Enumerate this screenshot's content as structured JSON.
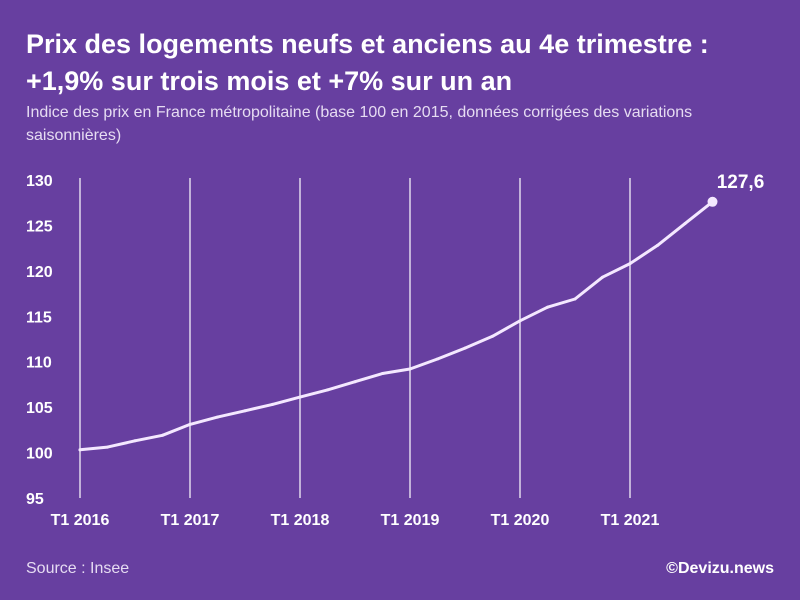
{
  "header": {
    "title_line1": "Prix des logements neufs et anciens au 4e trimestre :",
    "title_line2": "+1,9% sur trois mois et +7% sur un an",
    "subtitle": "Indice des prix en France métropolitaine (base 100 en 2015, données corrigées des variations saisonnières)"
  },
  "footer": {
    "source": "Source : Insee",
    "credit": "©Devizu.news"
  },
  "colors": {
    "background": "#673fa0",
    "line": "#f4e8ff",
    "grid": "#ffffff"
  },
  "chart_data": {
    "type": "line",
    "title": "Prix des logements neufs et anciens au 4e trimestre : +1,9% sur trois mois et +7% sur un an",
    "xlabel": "",
    "ylabel": "",
    "ylim": [
      95,
      130
    ],
    "yticks": [
      95,
      100,
      105,
      110,
      115,
      120,
      125,
      130
    ],
    "xtick_labels": [
      "T1 2016",
      "T1 2017",
      "T1 2018",
      "T1 2019",
      "T1 2020",
      "T1 2021"
    ],
    "grid": "vertical",
    "x": [
      "T1 2016",
      "T2 2016",
      "T3 2016",
      "T4 2016",
      "T1 2017",
      "T2 2017",
      "T3 2017",
      "T4 2017",
      "T1 2018",
      "T2 2018",
      "T3 2018",
      "T4 2018",
      "T1 2019",
      "T2 2019",
      "T3 2019",
      "T4 2019",
      "T1 2020",
      "T2 2020",
      "T3 2020",
      "T4 2020",
      "T1 2021",
      "T2 2021",
      "T3 2021",
      "T4 2021"
    ],
    "series": [
      {
        "values": [
          100.3,
          100.6,
          101.3,
          101.9,
          103.1,
          103.9,
          104.6,
          105.3,
          106.1,
          106.9,
          107.8,
          108.7,
          109.2,
          110.3,
          111.5,
          112.8,
          114.5,
          116.0,
          116.9,
          119.3,
          120.8,
          122.8,
          125.2,
          127.6
        ]
      }
    ],
    "last_value_label": "127,6"
  }
}
